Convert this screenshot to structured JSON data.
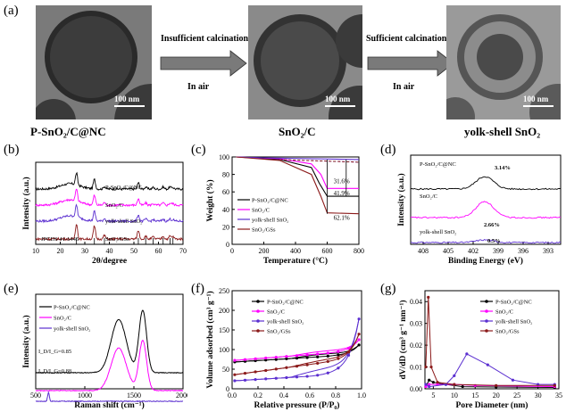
{
  "panel_labels": {
    "a": "(a)",
    "b": "(b)",
    "c": "(c)",
    "d": "(d)",
    "e": "(e)",
    "f": "(f)",
    "g": "(g)"
  },
  "top": {
    "scale_bar": "100 nm",
    "captions": [
      "P-SnO₂/C@NC",
      "SnO₂/C",
      "yolk-shell SnO₂"
    ],
    "arrow1": {
      "label": "Insufficient calcination",
      "sub": "In air"
    },
    "arrow2": {
      "label": "Sufficient calcination",
      "sub": "In air"
    }
  },
  "chart_data": [
    {
      "panel": "b",
      "type": "line",
      "xlabel": "2θ/degree",
      "ylabel": "Intensity (a.u.)",
      "xlim": [
        10,
        70
      ],
      "xticks": [
        10,
        20,
        30,
        40,
        50,
        60,
        70
      ],
      "series": [
        {
          "name": "P-SnO₂/C@NC",
          "color": "#000000"
        },
        {
          "name": "SnO₂/C",
          "color": "#ff00ff"
        },
        {
          "name": "yolk-shell SnO₂",
          "color": "#5b2fd0"
        },
        {
          "name": "SnO₂/GSs",
          "color": "#8b1a1a"
        }
      ],
      "peaks_2theta": [
        26.6,
        33.9,
        38.0,
        51.8,
        54.8,
        57.8,
        61.9,
        64.7,
        65.9
      ],
      "reference": "JPCDS 41-1445"
    },
    {
      "panel": "c",
      "type": "line",
      "xlabel": "Temperature (°C)",
      "ylabel": "Weight (%)",
      "xlim": [
        0,
        800
      ],
      "ylim": [
        0,
        100
      ],
      "xticks": [
        0,
        200,
        400,
        600,
        800
      ],
      "yticks": [
        0,
        20,
        40,
        60,
        80,
        100
      ],
      "series": [
        {
          "name": "P-SnO₂/C@NC",
          "color": "#000000",
          "x": [
            25,
            300,
            500,
            550,
            600,
            800
          ],
          "y": [
            100,
            97,
            88,
            70,
            55,
            55
          ]
        },
        {
          "name": "SnO₂/C",
          "color": "#ff00ff",
          "x": [
            25,
            300,
            500,
            560,
            600,
            800
          ],
          "y": [
            100,
            98,
            92,
            80,
            64,
            64
          ]
        },
        {
          "name": "yolk-shell SnO₂",
          "color": "#5b2fd0",
          "x": [
            25,
            200,
            800
          ],
          "y": [
            100,
            99,
            97
          ]
        },
        {
          "name": "SnO₂/GSs",
          "color": "#8b1a1a",
          "x": [
            25,
            300,
            500,
            560,
            600,
            800
          ],
          "y": [
            100,
            96,
            80,
            55,
            36,
            35
          ]
        }
      ],
      "annotations": [
        "31.6%",
        "41.9%",
        "62.1%"
      ]
    },
    {
      "panel": "d",
      "type": "line",
      "xlabel": "Binding Energy (eV)",
      "ylabel": "Intensity (a.u.)",
      "xlim": [
        409.5,
        391.5
      ],
      "xticks": [
        408,
        405,
        402,
        399,
        396,
        393
      ],
      "series": [
        {
          "name": "P-SnO₂/C@NC",
          "color": "#000000",
          "percent": "3.14%"
        },
        {
          "name": "SnO₂/C",
          "color": "#ff00ff",
          "percent": "2.66%"
        },
        {
          "name": "yolk-shell SnO₂",
          "color": "#5b2fd0",
          "percent": "0.5%"
        }
      ]
    },
    {
      "panel": "e",
      "type": "line",
      "xlabel": "Raman shift (cm⁻¹)",
      "ylabel": "Intensity (a.u.)",
      "xlim": [
        500,
        2000
      ],
      "xticks": [
        500,
        1000,
        1500,
        2000
      ],
      "series": [
        {
          "name": "P-SnO₂/C@NC",
          "color": "#000000"
        },
        {
          "name": "SnO₂/C",
          "color": "#ff00ff"
        },
        {
          "name": "yolk-shell SnO₂",
          "color": "#5b2fd0"
        }
      ],
      "ratios": [
        "I_D/I_G=0.85",
        "I_D/I_G=0.88"
      ]
    },
    {
      "panel": "f",
      "type": "line",
      "xlabel": "Relative pressure (P/P₀)",
      "ylabel": "Volume adsorbed (cm³ g⁻¹)",
      "xlim": [
        0,
        1.0
      ],
      "ylim": [
        0,
        250
      ],
      "xticks": [
        0.0,
        0.2,
        0.4,
        0.6,
        0.8,
        1.0
      ],
      "yticks": [
        0,
        50,
        100,
        150,
        200,
        250
      ],
      "series": [
        {
          "name": "P-SnO₂/C@NC",
          "color": "#000000"
        },
        {
          "name": "SnO₂/C",
          "color": "#ff00ff"
        },
        {
          "name": "yolk-shell SnO₂",
          "color": "#5b2fd0"
        },
        {
          "name": "SnO₂/GSs",
          "color": "#8b1a1a"
        }
      ]
    },
    {
      "panel": "g",
      "type": "line",
      "xlabel": "Pore Diameter (nm)",
      "ylabel": "dV/dD (cm³ g⁻¹ nm⁻¹)",
      "xlim": [
        3,
        35
      ],
      "ylim": [
        0,
        0.045
      ],
      "xticks": [
        5,
        10,
        15,
        20,
        25,
        30,
        35
      ],
      "yticks": [
        0.0,
        0.01,
        0.02,
        0.03,
        0.04
      ],
      "series": [
        {
          "name": "P-SnO₂/C@NC",
          "color": "#000000"
        },
        {
          "name": "SnO₂/C",
          "color": "#ff00ff"
        },
        {
          "name": "yolk-shell SnO₂",
          "color": "#5b2fd0"
        },
        {
          "name": "SnO₂/GSs",
          "color": "#8b1a1a"
        }
      ]
    }
  ]
}
